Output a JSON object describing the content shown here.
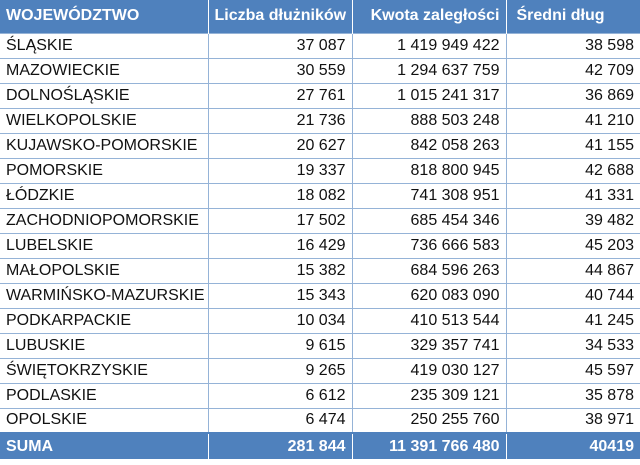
{
  "table": {
    "headers": [
      "WOJEWÓDZTWO",
      "Liczba dłużników",
      "Kwota zaległości",
      "Średni dług"
    ],
    "rows": [
      {
        "region": "ŚLĄSKIE",
        "debtors": "37 087",
        "amount": "1 419 949 422",
        "average": "38 598"
      },
      {
        "region": "MAZOWIECKIE",
        "debtors": "30 559",
        "amount": "1 294 637 759",
        "average": "42 709"
      },
      {
        "region": "DOLNOŚLĄSKIE",
        "debtors": "27 761",
        "amount": "1 015 241 317",
        "average": "36 869"
      },
      {
        "region": "WIELKOPOLSKIE",
        "debtors": "21 736",
        "amount": "888 503 248",
        "average": "41 210"
      },
      {
        "region": "KUJAWSKO-POMORSKIE",
        "debtors": "20 627",
        "amount": "842 058 263",
        "average": "41 155"
      },
      {
        "region": "POMORSKIE",
        "debtors": "19 337",
        "amount": "818 800 945",
        "average": "42 688"
      },
      {
        "region": "ŁÓDZKIE",
        "debtors": "18 082",
        "amount": "741 308 951",
        "average": "41 331"
      },
      {
        "region": "ZACHODNIOPOMORSKIE",
        "debtors": "17 502",
        "amount": "685 454 346",
        "average": "39 482"
      },
      {
        "region": "LUBELSKIE",
        "debtors": "16 429",
        "amount": "736 666 583",
        "average": "45 203"
      },
      {
        "region": "MAŁOPOLSKIE",
        "debtors": "15 382",
        "amount": "684 596 263",
        "average": "44 867"
      },
      {
        "region": "WARMIŃSKO-MAZURSKIE",
        "debtors": "15 343",
        "amount": "620 083 090",
        "average": "40 744"
      },
      {
        "region": "PODKARPACKIE",
        "debtors": "10 034",
        "amount": "410 513 544",
        "average": "41 245"
      },
      {
        "region": "LUBUSKIE",
        "debtors": "9 615",
        "amount": "329 357 741",
        "average": "34 533"
      },
      {
        "region": "ŚWIĘTOKRZYSKIE",
        "debtors": "9 265",
        "amount": "419 030 127",
        "average": "45 597"
      },
      {
        "region": "PODLASKIE",
        "debtors": "6 612",
        "amount": "235 309 121",
        "average": "35 878"
      },
      {
        "region": "OPOLSKIE",
        "debtors": "6 474",
        "amount": "250 255 760",
        "average": "38 971"
      }
    ],
    "total": {
      "region": "SUMA",
      "debtors": "281 844",
      "amount": "11 391 766 480",
      "average": "40419"
    }
  },
  "colors": {
    "header_bg": "#4f81bd",
    "header_text": "#ffffff",
    "row_border": "#95b3d7",
    "body_text": "#111111"
  }
}
